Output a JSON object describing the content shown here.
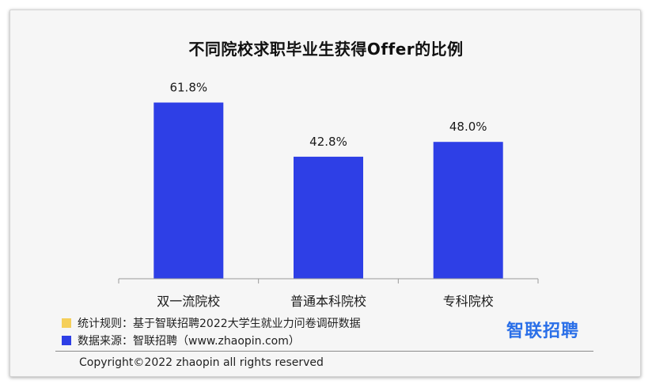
{
  "chart_data": {
    "type": "bar",
    "title": "不同院校求职毕业生获得Offer的比例",
    "categories": [
      "双一流院校",
      "普通本科院校",
      "专科院校"
    ],
    "values": [
      61.8,
      42.8,
      48.0
    ],
    "value_labels": [
      "61.8%",
      "42.8%",
      "48.0%"
    ],
    "ylim": [
      0,
      70
    ],
    "grid": false,
    "bar_color": "#2e3fe6"
  },
  "notes": {
    "rule_text": "统计规则：基于智联招聘2022大学生就业力问卷调研数据",
    "rule_color": "#f5cf5a",
    "source_text": "数据来源：智联招聘（www.zhaopin.com）",
    "source_color": "#2e3fe6"
  },
  "logo_text": "智联招聘",
  "copyright": "Copyright©2022 zhaopin all rights reserved"
}
